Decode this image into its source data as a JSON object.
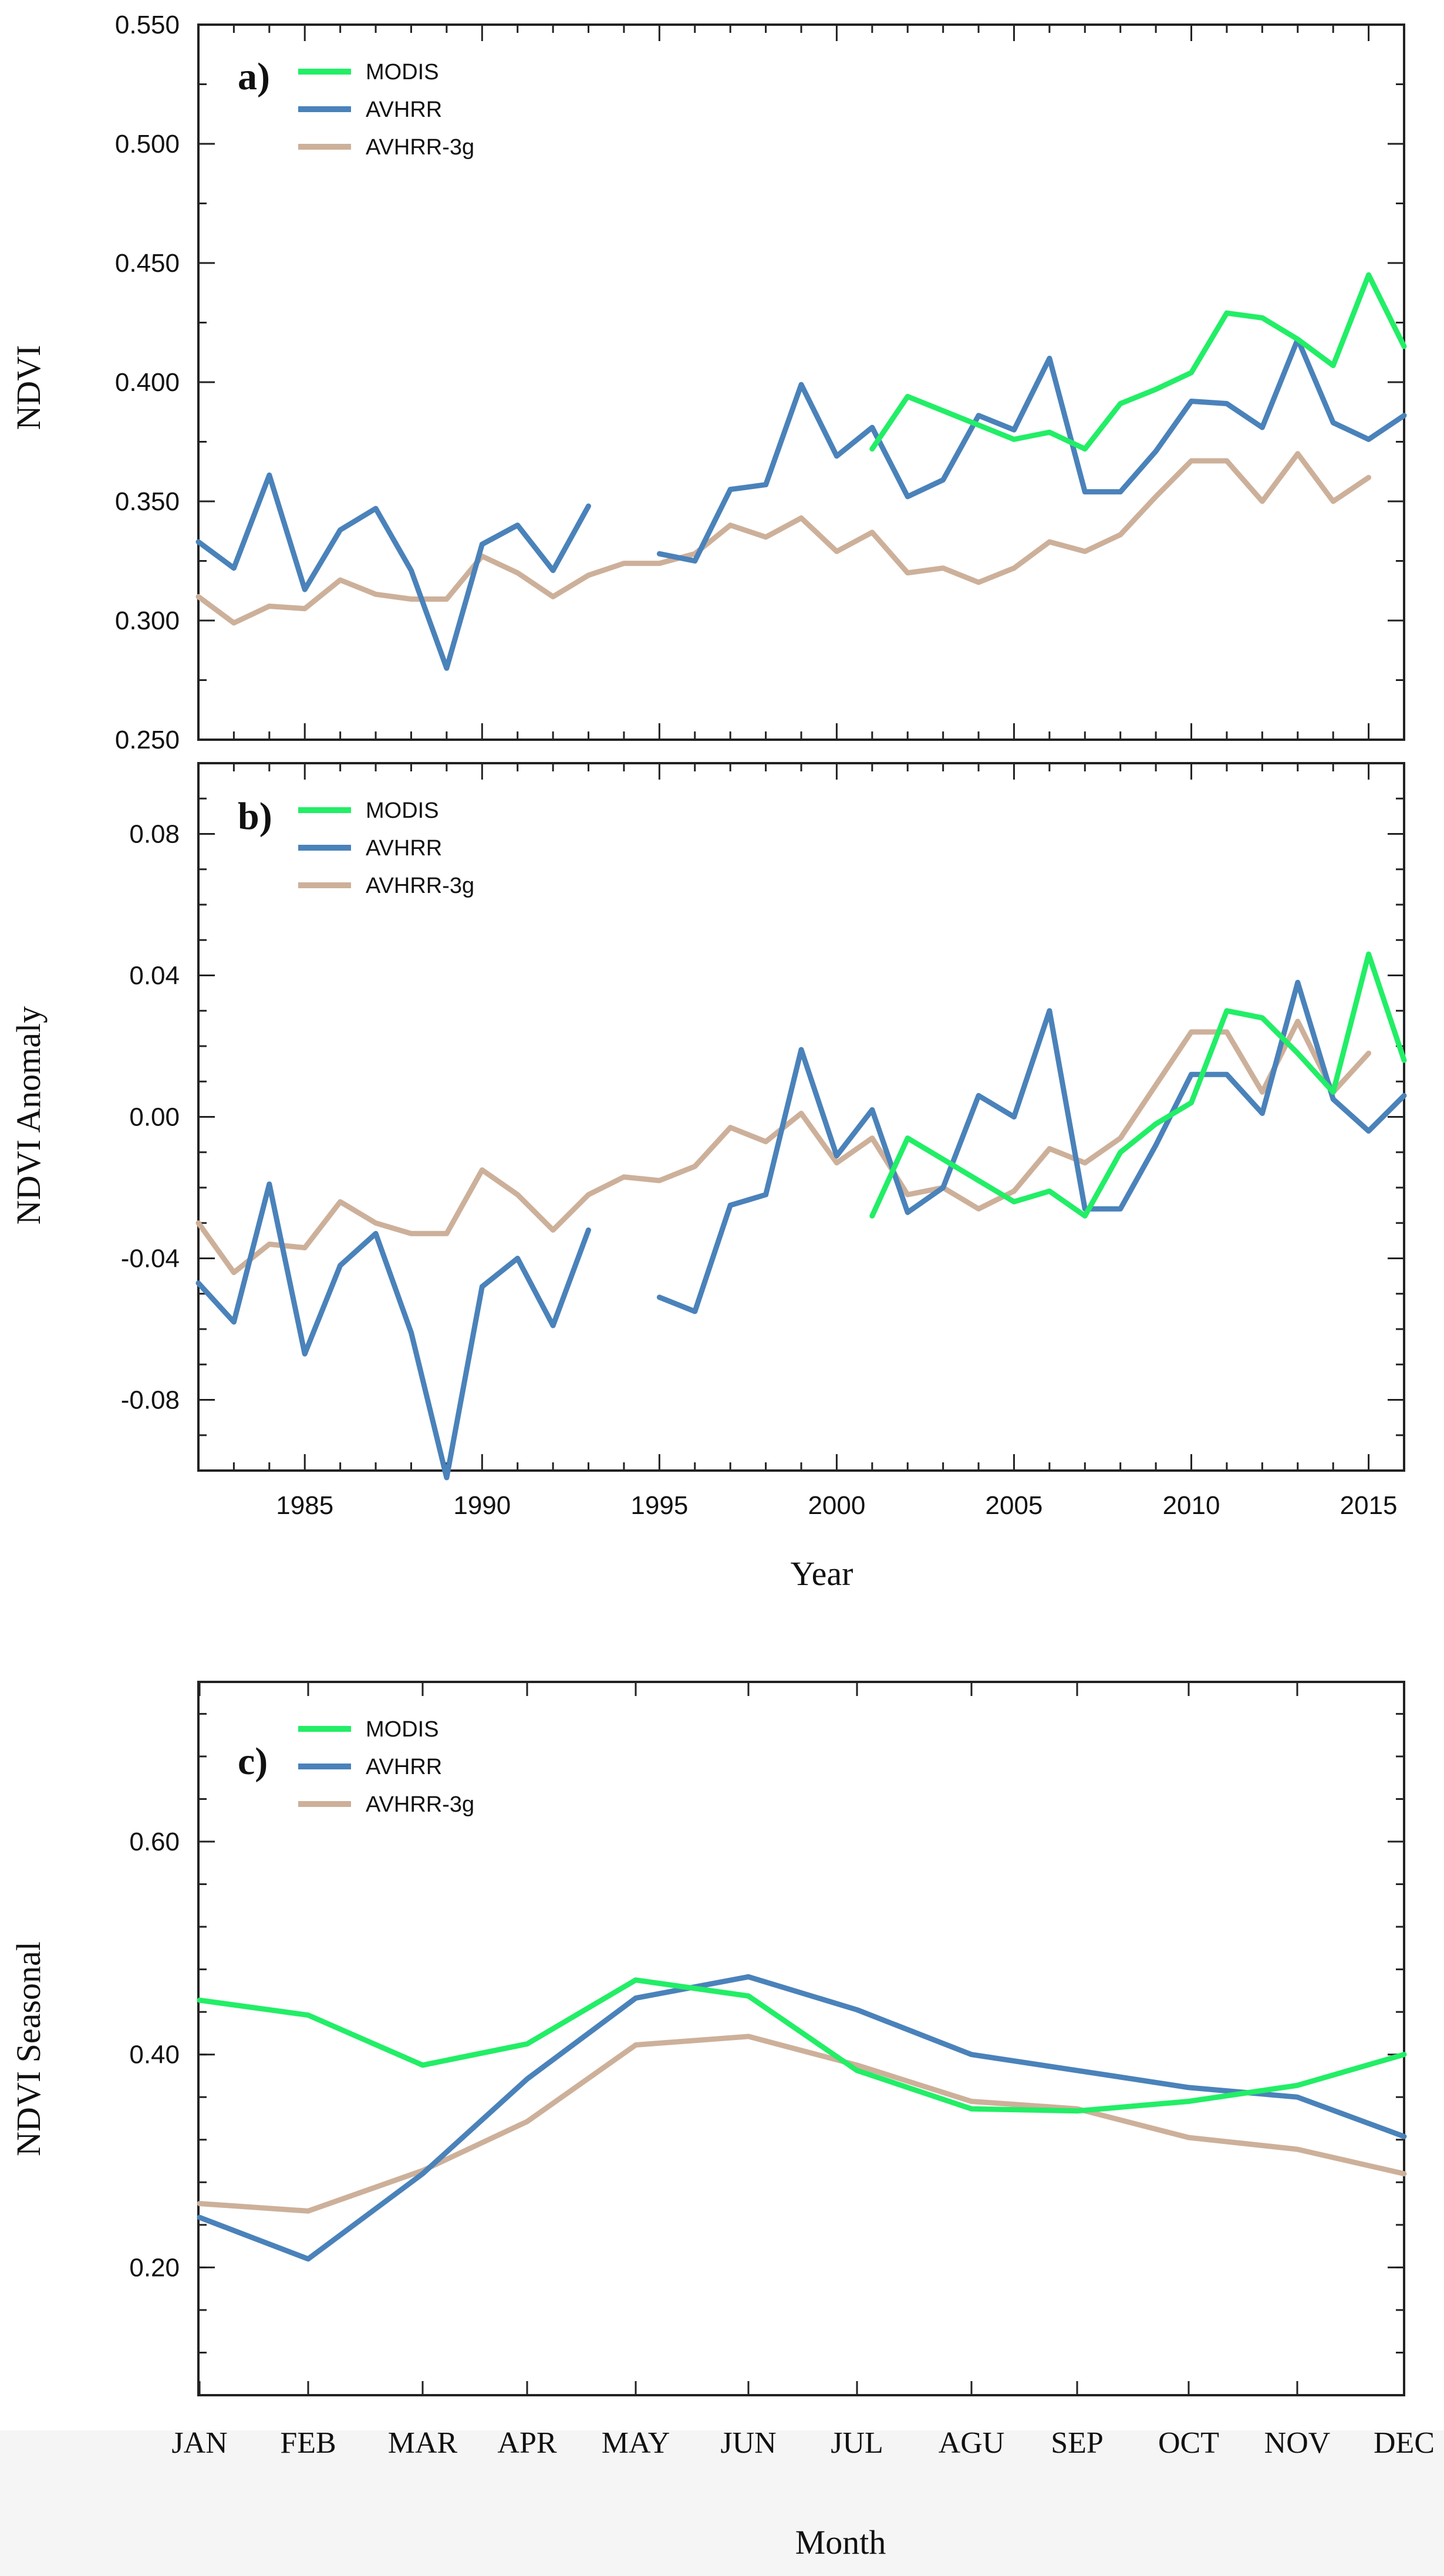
{
  "colors": {
    "MODIS": "#22ee66",
    "AVHRR": "#4a82ba",
    "AVHRR-3g": "#cdb09a"
  },
  "chart_data": [
    {
      "type": "line",
      "panel_label": "a)",
      "ylabel": "NDVI",
      "xlabel": "",
      "xlim": [
        1982,
        2016
      ],
      "ylim": [
        0.25,
        0.55
      ],
      "yticks": [
        "0.250",
        "0.300",
        "0.350",
        "0.400",
        "0.450",
        "0.500",
        "0.550"
      ],
      "series": [
        {
          "name": "MODIS",
          "x": [
            2001,
            2002,
            2003,
            2004,
            2005,
            2006,
            2007,
            2008,
            2009,
            2010,
            2011,
            2012,
            2013,
            2014,
            2015,
            2016
          ],
          "values": [
            0.372,
            0.394,
            0.388,
            0.382,
            0.376,
            0.379,
            0.372,
            0.391,
            0.397,
            0.404,
            0.429,
            0.427,
            0.418,
            0.407,
            0.445,
            0.415
          ]
        },
        {
          "name": "AVHRR",
          "x": [
            1982,
            1983,
            1984,
            1985,
            1986,
            1987,
            1988,
            1989,
            1990,
            1991,
            1992,
            1993,
            1994,
            1995,
            1996,
            1997,
            1998,
            1999,
            2000,
            2001,
            2002,
            2003,
            2004,
            2005,
            2006,
            2007,
            2008,
            2009,
            2010,
            2011,
            2012,
            2013,
            2014,
            2015,
            2016
          ],
          "values": [
            0.333,
            0.322,
            0.361,
            0.313,
            0.338,
            0.347,
            0.321,
            0.28,
            0.332,
            0.34,
            0.321,
            0.348,
            null,
            0.328,
            0.325,
            0.355,
            0.357,
            0.399,
            0.369,
            0.381,
            0.352,
            0.359,
            0.386,
            0.38,
            0.41,
            0.354,
            0.354,
            0.371,
            0.392,
            0.391,
            0.381,
            0.418,
            0.383,
            0.376,
            0.386
          ]
        },
        {
          "name": "AVHRR-3g",
          "x": [
            1982,
            1983,
            1984,
            1985,
            1986,
            1987,
            1988,
            1989,
            1990,
            1991,
            1992,
            1993,
            1994,
            1995,
            1996,
            1997,
            1998,
            1999,
            2000,
            2001,
            2002,
            2003,
            2004,
            2005,
            2006,
            2007,
            2008,
            2009,
            2010,
            2011,
            2012,
            2013,
            2014,
            2015
          ],
          "values": [
            0.31,
            0.299,
            0.306,
            0.305,
            0.317,
            0.311,
            0.309,
            0.309,
            0.327,
            0.32,
            0.31,
            0.319,
            0.324,
            0.324,
            0.328,
            0.34,
            0.335,
            0.343,
            0.329,
            0.337,
            0.32,
            0.322,
            0.316,
            0.322,
            0.333,
            0.329,
            0.336,
            0.352,
            0.367,
            0.367,
            0.35,
            0.37,
            0.35,
            0.36
          ]
        }
      ],
      "legend": [
        "MODIS",
        "AVHRR",
        "AVHRR-3g"
      ],
      "legend_position": "top-left"
    },
    {
      "type": "line",
      "panel_label": "b)",
      "ylabel": "NDVI Anomaly",
      "xlabel": "Year",
      "xlim": [
        1982,
        2016
      ],
      "ylim": [
        -0.1,
        0.1
      ],
      "xticks": [
        "1985",
        "1990",
        "1995",
        "2000",
        "2005",
        "2010",
        "2015"
      ],
      "yticks": [
        "-0.08",
        "-0.04",
        "0.00",
        "0.04",
        "0.08"
      ],
      "series": [
        {
          "name": "MODIS",
          "x": [
            2001,
            2002,
            2003,
            2004,
            2005,
            2006,
            2007,
            2008,
            2009,
            2010,
            2011,
            2012,
            2013,
            2014,
            2015,
            2016
          ],
          "values": [
            -0.028,
            -0.006,
            -0.012,
            -0.018,
            -0.024,
            -0.021,
            -0.028,
            -0.01,
            -0.002,
            0.004,
            0.03,
            0.028,
            0.018,
            0.007,
            0.046,
            0.016
          ]
        },
        {
          "name": "AVHRR",
          "x": [
            1982,
            1983,
            1984,
            1985,
            1986,
            1987,
            1988,
            1989,
            1990,
            1991,
            1992,
            1993,
            1994,
            1995,
            1996,
            1997,
            1998,
            1999,
            2000,
            2001,
            2002,
            2003,
            2004,
            2005,
            2006,
            2007,
            2008,
            2009,
            2010,
            2011,
            2012,
            2013,
            2014,
            2015,
            2016
          ],
          "values": [
            -0.047,
            -0.058,
            -0.019,
            -0.067,
            -0.042,
            -0.033,
            -0.061,
            -0.102,
            -0.048,
            -0.04,
            -0.059,
            -0.032,
            null,
            -0.051,
            -0.055,
            -0.025,
            -0.022,
            0.019,
            -0.011,
            0.002,
            -0.027,
            -0.02,
            0.006,
            0.0,
            0.03,
            -0.026,
            -0.026,
            -0.008,
            0.012,
            0.012,
            0.001,
            0.038,
            0.005,
            -0.004,
            0.006
          ]
        },
        {
          "name": "AVHRR-3g",
          "x": [
            1982,
            1983,
            1984,
            1985,
            1986,
            1987,
            1988,
            1989,
            1990,
            1991,
            1992,
            1993,
            1994,
            1995,
            1996,
            1997,
            1998,
            1999,
            2000,
            2001,
            2002,
            2003,
            2004,
            2005,
            2006,
            2007,
            2008,
            2009,
            2010,
            2011,
            2012,
            2013,
            2014,
            2015
          ],
          "values": [
            -0.03,
            -0.044,
            -0.036,
            -0.037,
            -0.024,
            -0.03,
            -0.033,
            -0.033,
            -0.015,
            -0.022,
            -0.032,
            -0.022,
            -0.017,
            -0.018,
            -0.014,
            -0.003,
            -0.007,
            0.001,
            -0.013,
            -0.006,
            -0.022,
            -0.02,
            -0.026,
            -0.021,
            -0.009,
            -0.013,
            -0.006,
            0.009,
            0.024,
            0.024,
            0.007,
            0.027,
            0.007,
            0.018
          ]
        }
      ],
      "legend": [
        "MODIS",
        "AVHRR",
        "AVHRR-3g"
      ],
      "legend_position": "top-left"
    },
    {
      "type": "line",
      "panel_label": "c)",
      "ylabel": "NDVI Seasonal",
      "xlabel": "Month",
      "ylim": [
        0.08,
        0.75
      ],
      "categories": [
        "JAN",
        "FEB",
        "MAR",
        "APR",
        "MAY",
        "JUN",
        "JUL",
        "AGU",
        "SEP",
        "OCT",
        "NOV",
        "DEC"
      ],
      "yticks": [
        "0.20",
        "0.40",
        "0.60"
      ],
      "series": [
        {
          "name": "MODIS",
          "values": [
            0.451,
            0.437,
            0.39,
            0.41,
            0.47,
            0.455,
            0.385,
            0.349,
            0.347,
            0.356,
            0.371,
            0.4
          ]
        },
        {
          "name": "AVHRR",
          "values": [
            0.247,
            0.208,
            0.288,
            0.377,
            0.453,
            0.473,
            0.442,
            0.4,
            0.385,
            0.369,
            0.36,
            0.323
          ]
        },
        {
          "name": "AVHRR-3g",
          "values": [
            0.26,
            0.253,
            0.291,
            0.337,
            0.409,
            0.417,
            0.39,
            0.356,
            0.349,
            0.322,
            0.311,
            0.288
          ]
        }
      ],
      "legend": [
        "MODIS",
        "AVHRR",
        "AVHRR-3g"
      ],
      "legend_position": "top-left"
    }
  ]
}
